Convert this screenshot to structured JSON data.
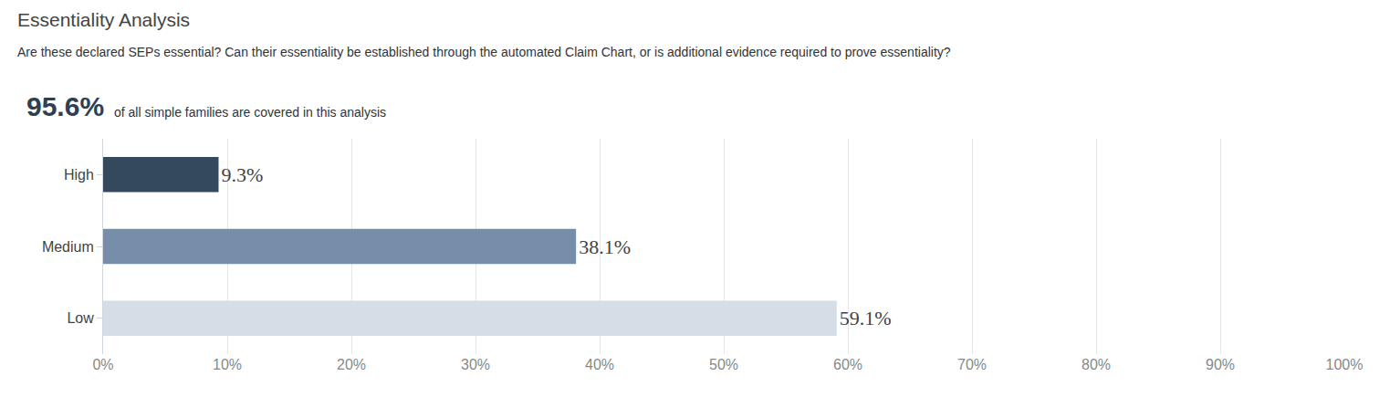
{
  "chart_data": {
    "type": "bar",
    "title": "Essentiality Analysis",
    "subtitle": "Are these declared SEPs essential? Can their essentiality be established through the automated Claim Chart, or is additional evidence required to prove essentiality?",
    "annotations": [
      {
        "text": "95.6%"
      },
      {
        "text": "of all simple families are covered in this analysis"
      }
    ],
    "orientation": "horizontal",
    "categories": [
      "High",
      "Medium",
      "Low"
    ],
    "values": [
      9.3,
      38.1,
      59.1
    ],
    "value_labels": [
      "9.3%",
      "38.1%",
      "59.1%"
    ],
    "colors": [
      "#34495e",
      "#768ea9",
      "#d5dde6"
    ],
    "data_labels": true,
    "xlim": [
      0,
      100
    ],
    "xticks": [
      {
        "value": 0,
        "label": "0%"
      },
      {
        "value": 10,
        "label": "10%"
      },
      {
        "value": 20,
        "label": "20%"
      },
      {
        "value": 30,
        "label": "30%"
      },
      {
        "value": 40,
        "label": "40%"
      },
      {
        "value": 50,
        "label": "50%"
      },
      {
        "value": 60,
        "label": "60%"
      },
      {
        "value": 70,
        "label": "70%"
      },
      {
        "value": 80,
        "label": "80%"
      },
      {
        "value": 90,
        "label": "90%"
      },
      {
        "value": 100,
        "label": "100%"
      }
    ],
    "grid": true
  }
}
